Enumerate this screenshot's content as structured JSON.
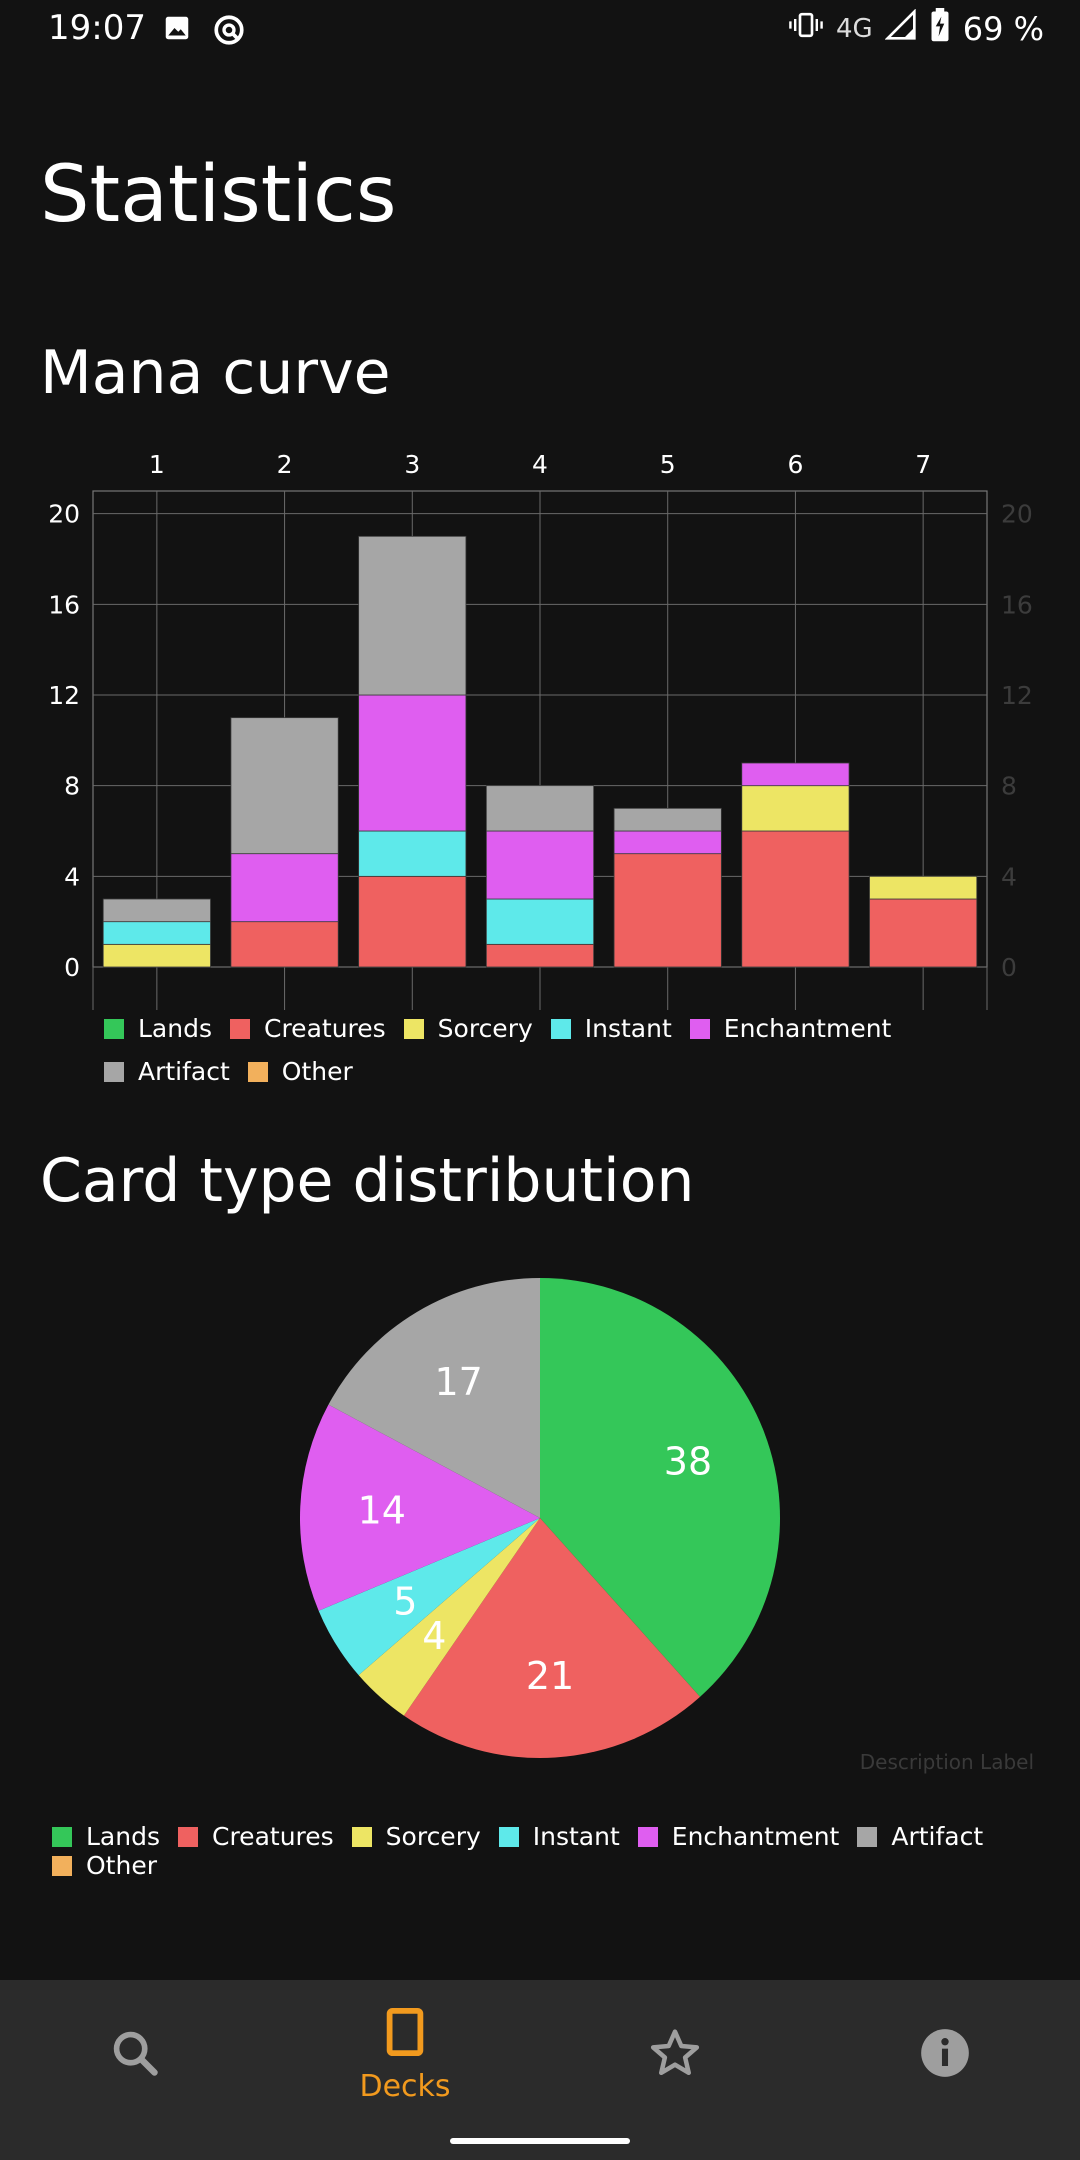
{
  "status_bar": {
    "time": "19:07",
    "network": "4G",
    "battery": "69 %",
    "icons": [
      "image-icon",
      "quick-settings-icon",
      "vibrate-icon",
      "signal-icon",
      "battery-charging-icon"
    ]
  },
  "page": {
    "title": "Statistics"
  },
  "mana_curve": {
    "title": "Mana curve"
  },
  "card_type": {
    "title": "Card type distribution",
    "description_label": "Description Label"
  },
  "legend": [
    {
      "label": "Lands",
      "color": "#34c759"
    },
    {
      "label": "Creatures",
      "color": "#ef6160"
    },
    {
      "label": "Sorcery",
      "color": "#ede564"
    },
    {
      "label": "Instant",
      "color": "#5ee9ea"
    },
    {
      "label": "Enchantment",
      "color": "#df5ef0"
    },
    {
      "label": "Artifact",
      "color": "#a6a6a6"
    },
    {
      "label": "Other",
      "color": "#f2b05c"
    }
  ],
  "chart_data": [
    {
      "type": "bar",
      "stacked": true,
      "categories": [
        "1",
        "2",
        "3",
        "4",
        "5",
        "6",
        "7"
      ],
      "yticks": [
        0,
        4,
        8,
        12,
        16,
        20
      ],
      "ylim": [
        0,
        21
      ],
      "grid": true,
      "legend_position": "bottom",
      "series": [
        {
          "name": "Lands",
          "color": "#34c759",
          "values": [
            0,
            0,
            0,
            0,
            0,
            0,
            0
          ]
        },
        {
          "name": "Creatures",
          "color": "#ef6160",
          "values": [
            0,
            2,
            4,
            1,
            5,
            6,
            3
          ]
        },
        {
          "name": "Sorcery",
          "color": "#ede564",
          "values": [
            1,
            0,
            0,
            0,
            0,
            2,
            1
          ]
        },
        {
          "name": "Instant",
          "color": "#5ee9ea",
          "values": [
            1,
            0,
            2,
            2,
            0,
            0,
            0
          ]
        },
        {
          "name": "Enchantment",
          "color": "#df5ef0",
          "values": [
            0,
            3,
            6,
            3,
            1,
            1,
            0
          ]
        },
        {
          "name": "Artifact",
          "color": "#a6a6a6",
          "values": [
            1,
            6,
            7,
            2,
            1,
            0,
            0
          ]
        },
        {
          "name": "Other",
          "color": "#f2b05c",
          "values": [
            0,
            0,
            0,
            0,
            0,
            0,
            0
          ]
        }
      ]
    },
    {
      "type": "pie",
      "legend_position": "bottom",
      "slices": [
        {
          "name": "Lands",
          "value": 38,
          "color": "#34c759"
        },
        {
          "name": "Creatures",
          "value": 21,
          "color": "#ef6160"
        },
        {
          "name": "Sorcery",
          "value": 4,
          "color": "#ede564"
        },
        {
          "name": "Instant",
          "value": 5,
          "color": "#5ee9ea"
        },
        {
          "name": "Enchantment",
          "value": 14,
          "color": "#df5ef0"
        },
        {
          "name": "Artifact",
          "value": 17,
          "color": "#a6a6a6"
        },
        {
          "name": "Other",
          "value": 0,
          "color": "#f2b05c"
        }
      ]
    }
  ],
  "bottom_nav": {
    "items": [
      {
        "icon": "search-icon",
        "label": "",
        "active": false
      },
      {
        "icon": "deck-icon",
        "label": "Decks",
        "active": true
      },
      {
        "icon": "star-icon",
        "label": "",
        "active": false
      },
      {
        "icon": "info-icon",
        "label": "",
        "active": false
      }
    ],
    "active_color": "#f29a1e",
    "inactive_color": "#9e9e9e"
  }
}
